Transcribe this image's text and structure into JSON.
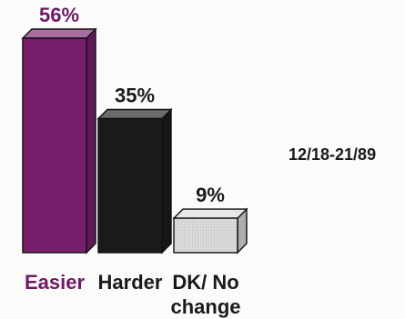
{
  "date_note": "12/18-21/89",
  "chart_data": {
    "type": "bar",
    "style": "3d",
    "categories": [
      "Easier",
      "Harder",
      "DK/ No change"
    ],
    "category_lines": [
      [
        "Easier"
      ],
      [
        "Harder"
      ],
      [
        "DK/ No",
        "change"
      ]
    ],
    "values": [
      56,
      35,
      9
    ],
    "value_labels": [
      "56%",
      "35%",
      "9%"
    ],
    "ylim": [
      0,
      56
    ],
    "grid": false,
    "legend": "none",
    "colors": [
      "#7a1f6e",
      "#1b1b1b",
      "#dadada"
    ],
    "label_colors": [
      "#6d1a64",
      "#1a1a1a",
      "#1a1a1a"
    ]
  }
}
